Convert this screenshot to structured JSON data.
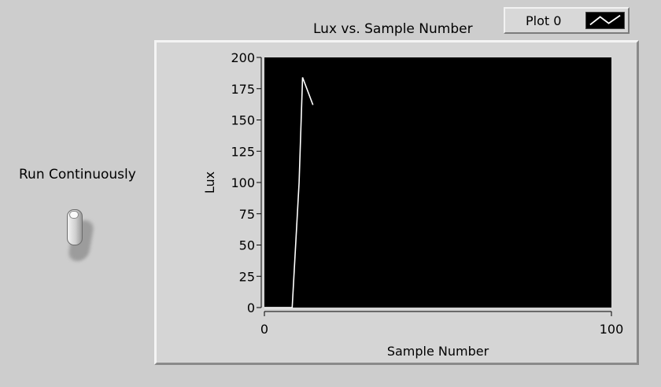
{
  "panel": {
    "toggle_label": "Run Continuously"
  },
  "toggle": {
    "state": "off",
    "icon": "toggle-switch-icon"
  },
  "graph": {
    "title": "Lux vs. Sample Number",
    "legend_label": "Plot 0",
    "plot_bg": "#000000",
    "trace_color": "#ffffff"
  },
  "chart_data": {
    "type": "line",
    "title": "Lux vs. Sample Number",
    "xlabel": "Sample Number",
    "ylabel": "Lux",
    "xlim": [
      0,
      100
    ],
    "ylim": [
      0,
      200
    ],
    "x_ticks": [
      "0",
      "100"
    ],
    "y_ticks": [
      "0",
      "25",
      "50",
      "75",
      "100",
      "125",
      "150",
      "175",
      "200"
    ],
    "legend_position": "top-right",
    "grid": false,
    "series": [
      {
        "name": "Plot 0",
        "x": [
          0,
          8,
          10,
          11,
          14
        ],
        "y": [
          0,
          0,
          100,
          184,
          162
        ]
      }
    ]
  }
}
